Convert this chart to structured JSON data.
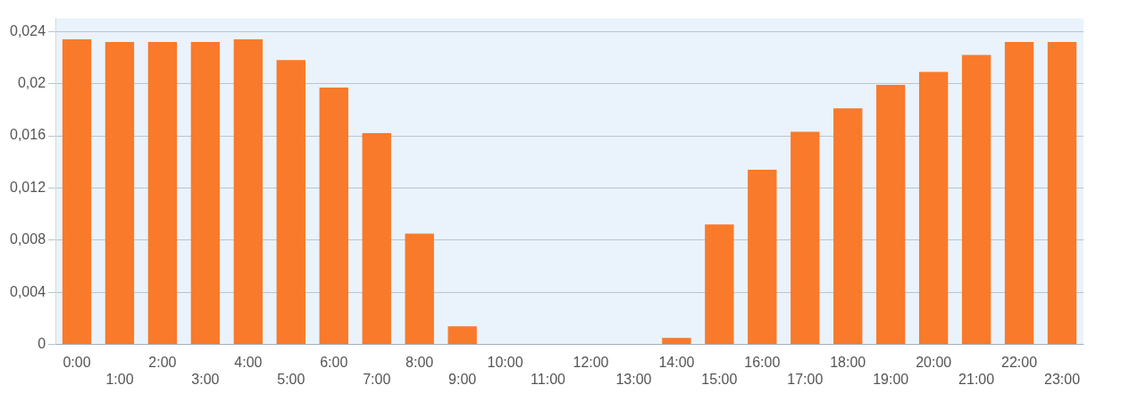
{
  "chart_data": {
    "type": "bar",
    "categories": [
      "0:00",
      "1:00",
      "2:00",
      "3:00",
      "4:00",
      "5:00",
      "6:00",
      "7:00",
      "8:00",
      "9:00",
      "10:00",
      "11:00",
      "12:00",
      "13:00",
      "14:00",
      "15:00",
      "16:00",
      "17:00",
      "18:00",
      "19:00",
      "20:00",
      "21:00",
      "22:00",
      "23:00"
    ],
    "values": [
      0.0234,
      0.0232,
      0.0232,
      0.0232,
      0.0234,
      0.0218,
      0.0197,
      0.0162,
      0.0085,
      0.0014,
      0,
      0,
      0,
      0,
      0.0005,
      0.0092,
      0.0134,
      0.0163,
      0.0181,
      0.0199,
      0.0209,
      0.0222,
      0.0232,
      0.0232
    ],
    "color": "#f97a2a",
    "ylim": [
      0,
      0.025
    ],
    "yticks": [
      {
        "value": 0,
        "label": "0"
      },
      {
        "value": 0.004,
        "label": "0,004"
      },
      {
        "value": 0.008,
        "label": "0,008"
      },
      {
        "value": 0.012,
        "label": "0,012"
      },
      {
        "value": 0.016,
        "label": "0,016"
      },
      {
        "value": 0.02,
        "label": "0,02"
      },
      {
        "value": 0.024,
        "label": "0,024"
      }
    ],
    "grid": "y",
    "legend": false
  }
}
